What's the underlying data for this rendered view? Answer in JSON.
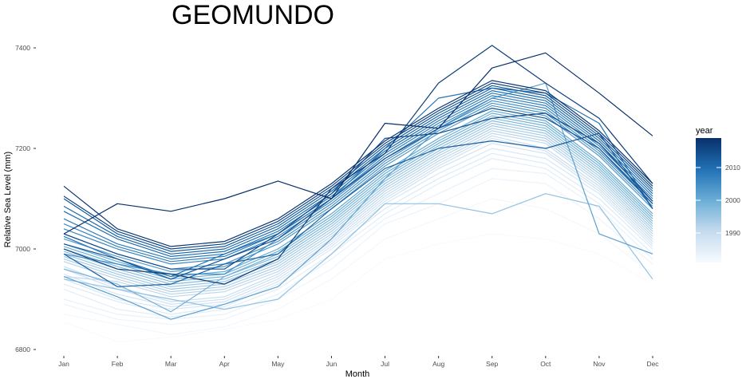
{
  "chart_data": {
    "type": "line",
    "title": "GEOMUNDO",
    "xlabel": "Month",
    "ylabel": "Relative Sea Level (mm)",
    "categories": [
      "Jan",
      "Feb",
      "Mar",
      "Apr",
      "May",
      "Jun",
      "Jul",
      "Aug",
      "Sep",
      "Oct",
      "Nov",
      "Dec"
    ],
    "ylim": [
      6800,
      7400
    ],
    "y_ticks": [
      6800,
      7000,
      7200,
      7400
    ],
    "y_tick_labels": [
      "6800",
      "7000",
      "7200",
      "7400"
    ],
    "grid": false,
    "legend": {
      "title": "year",
      "type": "colorbar",
      "position": "right",
      "range": [
        1981,
        2019
      ],
      "ticks": [
        1990,
        2000,
        2010
      ],
      "tick_labels": [
        "1990",
        "2000",
        "2010"
      ],
      "color_low": "#f7fbff",
      "color_high": "#08306b"
    },
    "series": [
      {
        "year": 1981,
        "values": [
          6855,
          6815,
          6825,
          6840,
          6860,
          6900,
          6980,
          7010,
          7030,
          7020,
          6990,
          6930
        ]
      },
      {
        "year": 1982,
        "values": [
          6870,
          6850,
          6830,
          6845,
          6880,
          6940,
          7020,
          7060,
          7100,
          7080,
          7030,
          6950
        ]
      },
      {
        "year": 1983,
        "values": [
          6890,
          6860,
          6850,
          6860,
          6900,
          6960,
          7050,
          7090,
          7140,
          7130,
          7060,
          6970
        ]
      },
      {
        "year": 1984,
        "values": [
          6900,
          6870,
          6860,
          6870,
          6910,
          6980,
          7060,
          7110,
          7160,
          7150,
          7080,
          6980
        ]
      },
      {
        "year": 1985,
        "values": [
          6920,
          6880,
          6865,
          6880,
          6920,
          6990,
          7070,
          7130,
          7180,
          7160,
          7090,
          6990
        ]
      },
      {
        "year": 1986,
        "values": [
          6930,
          6895,
          6870,
          6885,
          6930,
          7000,
          7080,
          7140,
          7190,
          7170,
          7100,
          7000
        ]
      },
      {
        "year": 1987,
        "values": [
          6940,
          6900,
          6880,
          6890,
          6935,
          7005,
          7090,
          7150,
          7200,
          7180,
          7110,
          7005
        ]
      },
      {
        "year": 1988,
        "values": [
          6950,
          6910,
          6885,
          6895,
          6940,
          7010,
          7095,
          7160,
          7210,
          7190,
          7115,
          7010
        ]
      },
      {
        "year": 1989,
        "values": [
          6960,
          6920,
          6890,
          6900,
          6945,
          7015,
          7100,
          7165,
          7220,
          7195,
          7120,
          7015
        ]
      },
      {
        "year": 1990,
        "values": [
          6965,
          6925,
          6895,
          6905,
          6950,
          7020,
          7105,
          7170,
          7225,
          7200,
          7125,
          7020
        ]
      },
      {
        "year": 1991,
        "values": [
          6945,
          6935,
          6905,
          6915,
          6955,
          7025,
          7110,
          7175,
          7230,
          7210,
          7130,
          7025
        ]
      },
      {
        "year": 1992,
        "values": [
          6975,
          6940,
          6910,
          6920,
          6960,
          7030,
          7115,
          7180,
          7235,
          7215,
          7135,
          7030
        ]
      },
      {
        "year": 1993,
        "values": [
          6980,
          6945,
          6915,
          6925,
          6965,
          7035,
          7120,
          7185,
          7240,
          7220,
          7140,
          7035
        ]
      },
      {
        "year": 1994,
        "values": [
          6985,
          6950,
          6920,
          6930,
          6970,
          7040,
          7125,
          7190,
          7245,
          7225,
          7145,
          7040
        ]
      },
      {
        "year": 1995,
        "values": [
          6990,
          6955,
          6925,
          6935,
          6975,
          7045,
          7130,
          7195,
          7250,
          7230,
          7150,
          7045
        ]
      },
      {
        "year": 1996,
        "values": [
          6940,
          6920,
          6900,
          6880,
          6900,
          6990,
          7090,
          7090,
          7070,
          7110,
          7085,
          6940
        ]
      },
      {
        "year": 1997,
        "values": [
          6995,
          6960,
          6930,
          6940,
          6980,
          7050,
          7135,
          7200,
          7255,
          7235,
          7155,
          7050
        ]
      },
      {
        "year": 1998,
        "values": [
          7000,
          6965,
          6935,
          6945,
          6985,
          7055,
          7140,
          7205,
          7260,
          7240,
          7160,
          7055
        ]
      },
      {
        "year": 1999,
        "values": [
          6960,
          6930,
          6875,
          6945,
          6990,
          7060,
          7145,
          7210,
          7265,
          7245,
          7165,
          7060
        ]
      },
      {
        "year": 2000,
        "values": [
          7005,
          6970,
          6940,
          6950,
          6995,
          7065,
          7150,
          7215,
          7270,
          7250,
          7170,
          7065
        ]
      },
      {
        "year": 2001,
        "values": [
          7010,
          6975,
          6945,
          6955,
          7000,
          7070,
          7155,
          7220,
          7275,
          7255,
          7175,
          7070
        ]
      },
      {
        "year": 2002,
        "values": [
          6945,
          6905,
          6860,
          6890,
          6925,
          7020,
          7140,
          7240,
          7300,
          7330,
          7030,
          6990
        ]
      },
      {
        "year": 2003,
        "values": [
          7020,
          6985,
          6955,
          6965,
          7010,
          7080,
          7165,
          7230,
          7285,
          7265,
          7185,
          7080
        ]
      },
      {
        "year": 2004,
        "values": [
          7030,
          6990,
          6960,
          6970,
          7015,
          7085,
          7170,
          7235,
          7290,
          7270,
          7190,
          7085
        ]
      },
      {
        "year": 2005,
        "values": [
          6990,
          6970,
          6950,
          6950,
          7020,
          7090,
          7175,
          7240,
          7295,
          7275,
          7195,
          7090
        ]
      },
      {
        "year": 2006,
        "values": [
          7040,
          7000,
          6970,
          6980,
          7025,
          7095,
          7180,
          7245,
          7300,
          7280,
          7200,
          7095
        ]
      },
      {
        "year": 2007,
        "values": [
          7050,
          7005,
          6975,
          6985,
          7030,
          7100,
          7185,
          7250,
          7305,
          7285,
          7205,
          7100
        ]
      },
      {
        "year": 2008,
        "values": [
          7060,
          7010,
          6980,
          6990,
          7035,
          7105,
          7190,
          7255,
          7310,
          7290,
          7210,
          7105
        ]
      },
      {
        "year": 2009,
        "values": [
          7025,
          6980,
          6945,
          6990,
          7030,
          7100,
          7200,
          7300,
          7320,
          7310,
          7250,
          7080
        ]
      },
      {
        "year": 2010,
        "values": [
          7075,
          7020,
          6985,
          6995,
          7040,
          7110,
          7195,
          7260,
          7315,
          7295,
          7215,
          7110
        ]
      },
      {
        "year": 2011,
        "values": [
          7085,
          7025,
          6990,
          7000,
          7045,
          7115,
          7200,
          7265,
          7320,
          7300,
          7220,
          7115
        ]
      },
      {
        "year": 2012,
        "values": [
          6990,
          6925,
          6930,
          6970,
          6990,
          7080,
          7160,
          7200,
          7215,
          7200,
          7230,
          7080
        ]
      },
      {
        "year": 2013,
        "values": [
          7100,
          7030,
          6995,
          7005,
          7050,
          7120,
          7205,
          7270,
          7325,
          7305,
          7225,
          7120
        ]
      },
      {
        "year": 2014,
        "values": [
          7010,
          6980,
          6940,
          6980,
          7020,
          7100,
          7180,
          7240,
          7280,
          7260,
          7200,
          7090
        ]
      },
      {
        "year": 2015,
        "values": [
          7030,
          6990,
          6960,
          6960,
          7030,
          7110,
          7220,
          7230,
          7260,
          7270,
          7210,
          7095
        ]
      },
      {
        "year": 2016,
        "values": [
          7105,
          7035,
          7000,
          7010,
          7055,
          7125,
          7210,
          7275,
          7330,
          7310,
          7230,
          7125
        ]
      },
      {
        "year": 2017,
        "values": [
          7000,
          6960,
          6950,
          6930,
          6980,
          7120,
          7190,
          7330,
          7405,
          7330,
          7260,
          7130
        ]
      },
      {
        "year": 2018,
        "values": [
          7125,
          7040,
          7005,
          7015,
          7060,
          7130,
          7215,
          7280,
          7335,
          7315,
          7235,
          7130
        ]
      },
      {
        "year": 2019,
        "values": [
          7030,
          7090,
          7075,
          7100,
          7135,
          7100,
          7250,
          7240,
          7360,
          7390,
          7310,
          7225
        ]
      }
    ]
  }
}
